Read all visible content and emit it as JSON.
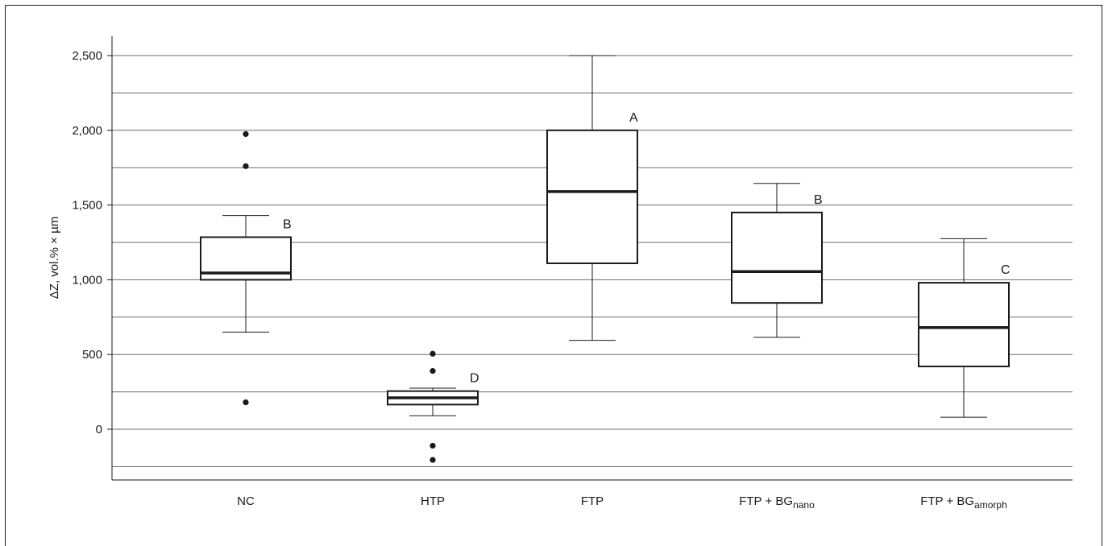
{
  "chart_data": {
    "type": "box",
    "ylabel": "ΔZ, vol.% × µm",
    "xlabel": "",
    "title": "",
    "ylim": [
      -330,
      2640
    ],
    "yticks": [
      0,
      500,
      1000,
      1500,
      2000,
      2500
    ],
    "ytick_labels": [
      "0",
      "500",
      "1,000",
      "1,500",
      "2,000",
      "2,500"
    ],
    "gridlines": [
      -250,
      0,
      250,
      500,
      750,
      1000,
      1250,
      1500,
      1750,
      2000,
      2250,
      2500
    ],
    "grid": true,
    "categories": [
      {
        "base": "NC",
        "sub": ""
      },
      {
        "base": "HTP",
        "sub": ""
      },
      {
        "base": "FTP",
        "sub": ""
      },
      {
        "base": "FTP + BG",
        "sub": "nano"
      },
      {
        "base": "FTP + BG",
        "sub": "amorph"
      }
    ],
    "boxes": [
      {
        "whisker_low": 650,
        "q1": 1000,
        "median": 1045,
        "q3": 1285,
        "whisker_high": 1430,
        "outliers": [
          180,
          1760,
          1975
        ],
        "letter": "B"
      },
      {
        "whisker_low": 90,
        "q1": 165,
        "median": 210,
        "q3": 255,
        "whisker_high": 275,
        "outliers": [
          -205,
          -110,
          390,
          505
        ],
        "letter": "D"
      },
      {
        "whisker_low": 595,
        "q1": 1110,
        "median": 1590,
        "q3": 2000,
        "whisker_high": 2500,
        "outliers": [],
        "letter": "A"
      },
      {
        "whisker_low": 615,
        "q1": 845,
        "median": 1055,
        "q3": 1450,
        "whisker_high": 1645,
        "outliers": [],
        "letter": "B"
      },
      {
        "whisker_low": 80,
        "q1": 420,
        "median": 680,
        "q3": 980,
        "whisker_high": 1275,
        "outliers": [],
        "letter": "C"
      }
    ]
  }
}
